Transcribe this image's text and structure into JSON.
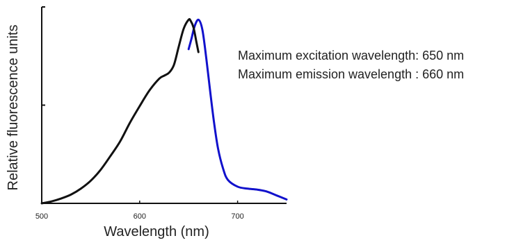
{
  "chart_data": {
    "type": "line",
    "title": "",
    "xlabel": "Wavelength (nm)",
    "ylabel": "Relative fluorescence units",
    "xlim": [
      500,
      750
    ],
    "ylim": [
      0,
      100
    ],
    "x_ticks": [
      {
        "value": 500,
        "label": "500"
      },
      {
        "value": 600,
        "label": "600"
      },
      {
        "value": 700,
        "label": "700"
      }
    ],
    "y_ticks": [
      0,
      50,
      100
    ],
    "grid": false,
    "legend": "none",
    "series": [
      {
        "color": "#111111",
        "x": [
          500,
          510,
          520,
          530,
          540,
          550,
          560,
          570,
          580,
          590,
          600,
          610,
          620,
          625,
          630,
          635,
          640,
          645,
          650,
          652,
          655,
          658,
          660
        ],
        "y": [
          0,
          1,
          2.5,
          4.5,
          7.5,
          11.5,
          17,
          24,
          31.5,
          41,
          49.5,
          57.5,
          63.5,
          65,
          66.5,
          70.5,
          80,
          89,
          93.5,
          93,
          89.5,
          82,
          77
        ]
      },
      {
        "color": "#1111cc",
        "x": [
          650,
          653,
          656,
          660,
          664,
          668,
          672,
          676,
          680,
          685,
          690,
          700,
          710,
          720,
          730,
          740,
          750
        ],
        "y": [
          78.5,
          84,
          90,
          93.5,
          88.5,
          74,
          57,
          41,
          28,
          18,
          12,
          8.5,
          7.5,
          7,
          6,
          4,
          2
        ]
      }
    ],
    "annotations": [
      "Maximum excitation wavelength: 650 nm",
      "Maximum emission wavelength : 660 nm"
    ]
  }
}
